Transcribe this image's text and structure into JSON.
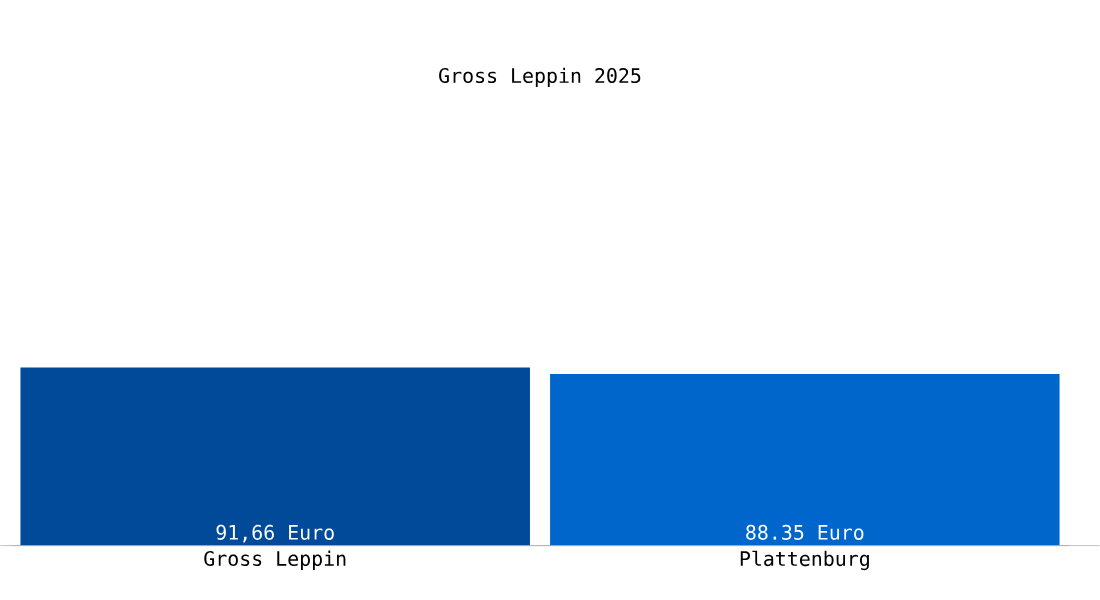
{
  "chart_data": {
    "type": "bar",
    "title": "Gross Leppin 2025",
    "categories": [
      "Gross Leppin",
      "Plattenburg"
    ],
    "values": [
      91.66,
      88.35
    ],
    "colors": [
      "#004a99",
      "#0066cc"
    ],
    "value_labels": [
      "91,66 Euro",
      "88.35 Euro"
    ]
  }
}
